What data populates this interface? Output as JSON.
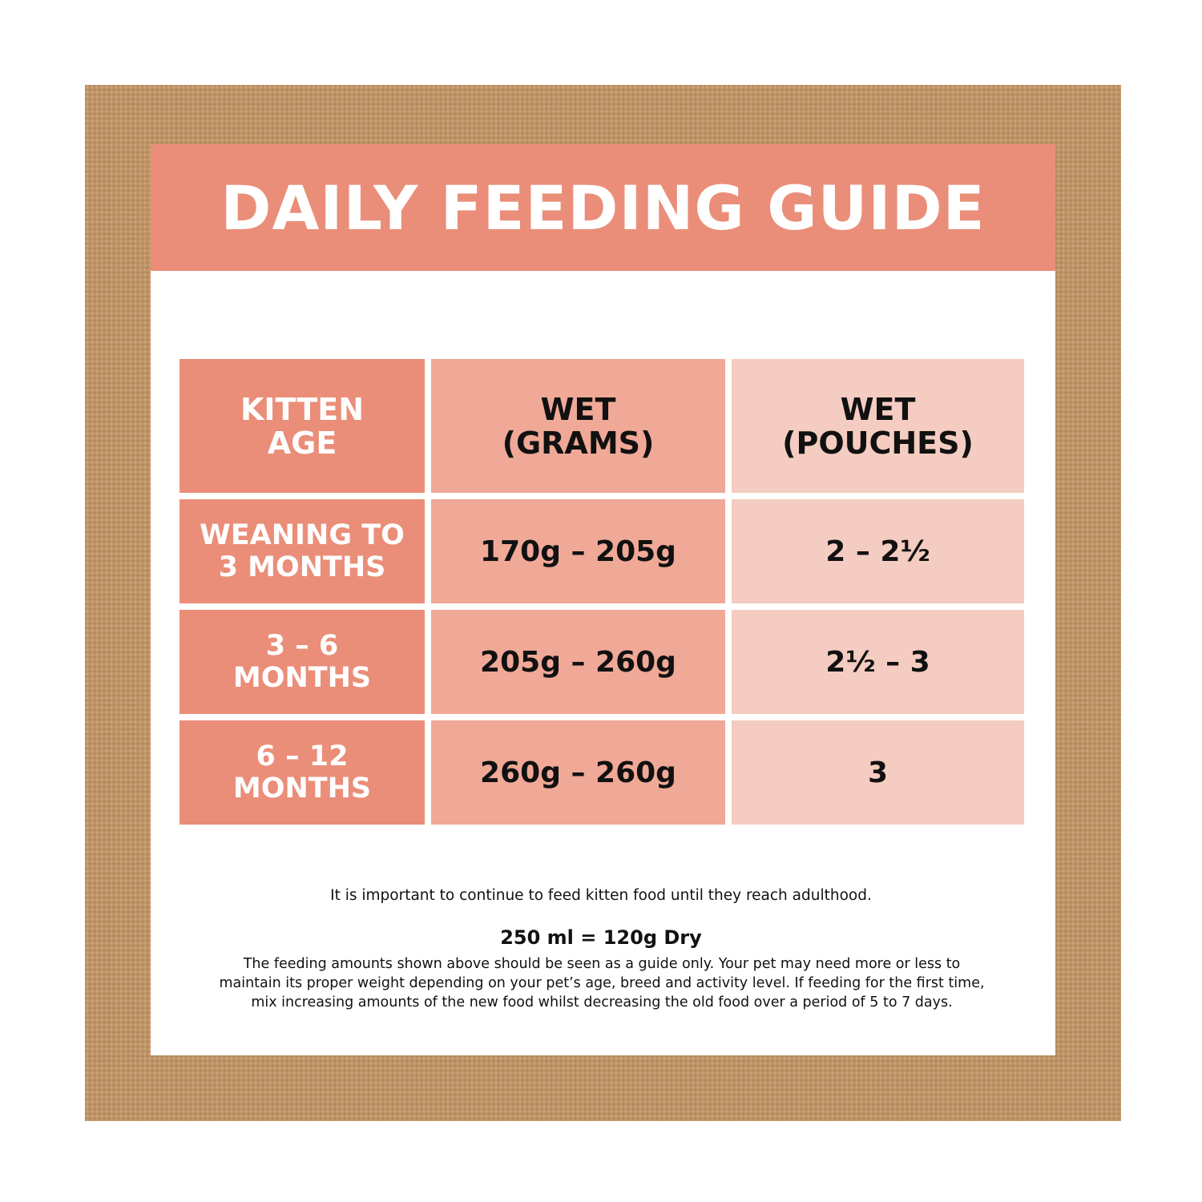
{
  "title": "DAILY FEEDING GUIDE",
  "table": {
    "headers": [
      [
        "KITTEN",
        "AGE"
      ],
      [
        "WET",
        "(GRAMS)"
      ],
      [
        "WET",
        "(POUCHES)"
      ]
    ],
    "rows": [
      {
        "age": [
          "WEANING TO",
          "3 MONTHS"
        ],
        "grams": "170g – 205g",
        "pouches": "2 – 2½"
      },
      {
        "age": [
          "3 – 6",
          "MONTHS"
        ],
        "grams": "205g – 260g",
        "pouches": "2½ – 3"
      },
      {
        "age": [
          "6 – 12",
          "MONTHS"
        ],
        "grams": "260g – 260g",
        "pouches": "3"
      }
    ]
  },
  "notes": {
    "adulthood": "It is important to continue to feed kitten food until they reach adulthood.",
    "conversion": "250 ml = 120g Dry",
    "disclaimer": [
      "The feeding amounts shown above should be seen as a guide only. Your pet may need more or less to",
      "maintain its proper weight depending on your pet’s age, breed and activity level. If feeding for the first time,",
      "mix increasing amounts of the new food whilst decreasing the old food over a period of 5 to 7 days."
    ]
  },
  "colors": {
    "frame": "#bf9466",
    "coral": "#ea8e79",
    "mid_pink": "#f0a897",
    "light_pink": "#f5ccc1"
  }
}
